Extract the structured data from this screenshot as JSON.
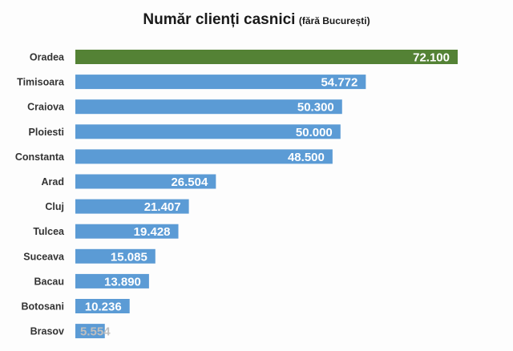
{
  "chart_data": {
    "type": "bar",
    "orientation": "horizontal",
    "title": "Număr clienți casnici",
    "subtitle": "(fără București)",
    "categories": [
      "Oradea",
      "Timisoara",
      "Craiova",
      "Ploiesti",
      "Constanta",
      "Arad",
      "Cluj",
      "Tulcea",
      "Suceava",
      "Bacau",
      "Botosani",
      "Brasov"
    ],
    "values": [
      72100,
      54772,
      50300,
      50000,
      48500,
      26504,
      21407,
      19428,
      15085,
      13890,
      10236,
      5554
    ],
    "value_labels": [
      "72.100",
      "54.772",
      "50.300",
      "50.000",
      "48.500",
      "26.504",
      "21.407",
      "19.428",
      "15.085",
      "13.890",
      "10.236",
      "5.554"
    ],
    "highlight_index": 0,
    "xlim": [
      0,
      80000
    ],
    "grid": false,
    "legend": "none",
    "colors": {
      "bar": "#5b9bd5",
      "highlight": "#548235",
      "label": "#333333"
    }
  }
}
